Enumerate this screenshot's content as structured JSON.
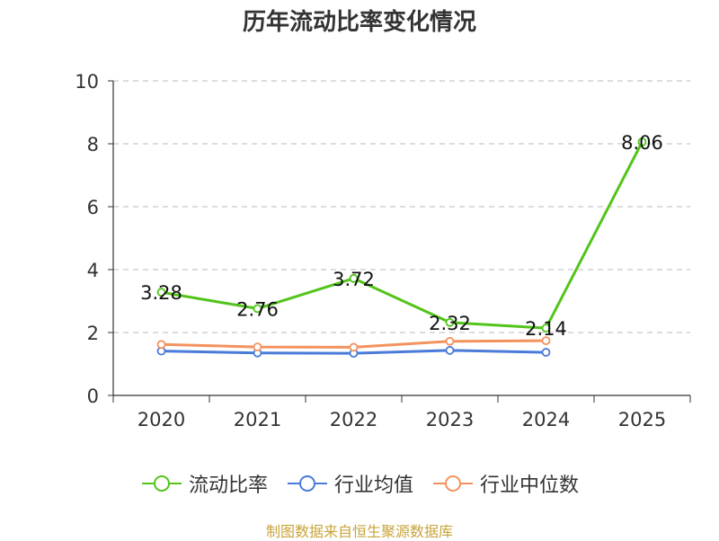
{
  "title": "历年流动比率变化情况",
  "source": "制图数据来自恒生聚源数据库",
  "colors": {
    "current_ratio": "#52c41a",
    "industry_mean": "#4a7bd8",
    "industry_median": "#f4925e"
  },
  "legend": [
    {
      "label": "流动比率",
      "color": "#52c41a"
    },
    {
      "label": "行业均值",
      "color": "#4a7bd8"
    },
    {
      "label": "行业中位数",
      "color": "#f4925e"
    }
  ],
  "chart_data": {
    "type": "line",
    "title": "历年流动比率变化情况",
    "xlabel": "",
    "ylabel": "",
    "categories": [
      "2020",
      "2021",
      "2022",
      "2023",
      "2024",
      "2025"
    ],
    "ylim": [
      0,
      10
    ],
    "yticks": [
      "0",
      "2",
      "4",
      "6",
      "8",
      "10"
    ],
    "grid": "horizontal dashed",
    "legend_position": "bottom",
    "series": [
      {
        "name": "流动比率",
        "values": [
          3.28,
          2.76,
          3.72,
          2.32,
          2.14,
          8.06
        ],
        "labels": [
          "3.28",
          "2.76",
          "3.72",
          "2.32",
          "2.14",
          "8.06"
        ],
        "color": "#52c41a"
      },
      {
        "name": "行业均值",
        "values": [
          1.41,
          1.35,
          1.34,
          1.43,
          1.37,
          null
        ],
        "color": "#4a7bd8"
      },
      {
        "name": "行业中位数",
        "values": [
          1.62,
          1.54,
          1.53,
          1.72,
          1.74,
          null
        ],
        "color": "#f4925e"
      }
    ]
  }
}
